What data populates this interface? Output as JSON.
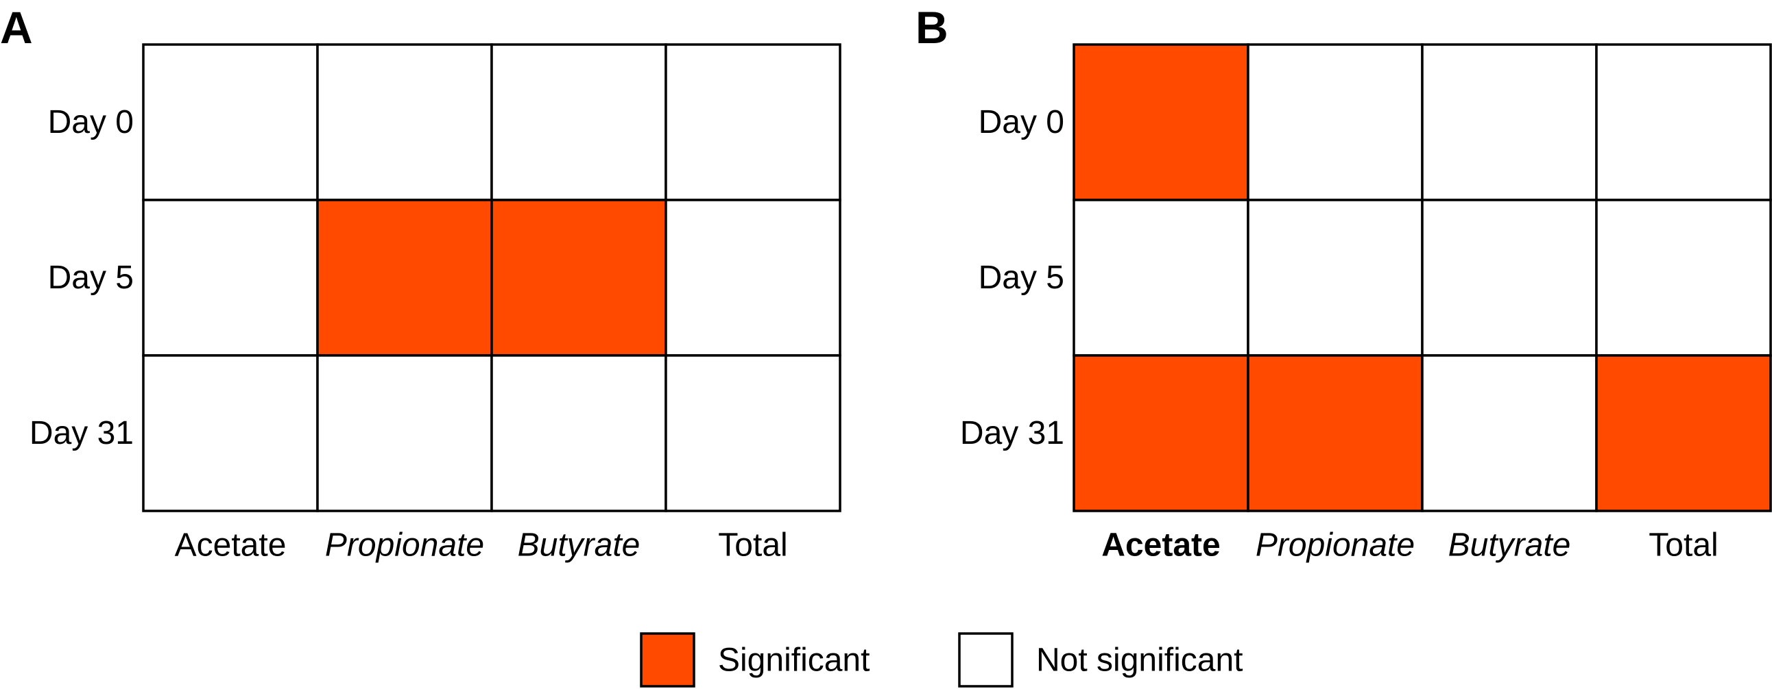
{
  "legend": {
    "items": [
      {
        "label": "Significant",
        "color": "#ff4a00"
      },
      {
        "label": "Not significant",
        "color": "#ffffff"
      }
    ]
  },
  "chart_data": [
    {
      "type": "heatmap",
      "panel": "A",
      "rows": [
        "Day 0",
        "Day 5",
        "Day 31"
      ],
      "columns": [
        {
          "label": "Acetate",
          "style": "normal"
        },
        {
          "label": "Propionate",
          "style": "italic"
        },
        {
          "label": "Butyrate",
          "style": "italic"
        },
        {
          "label": "Total",
          "style": "normal"
        }
      ],
      "values": [
        [
          0,
          0,
          0,
          0
        ],
        [
          0,
          1,
          1,
          0
        ],
        [
          0,
          0,
          0,
          0
        ]
      ]
    },
    {
      "type": "heatmap",
      "panel": "B",
      "rows": [
        "Day 0",
        "Day 5",
        "Day 31"
      ],
      "columns": [
        {
          "label": "Acetate",
          "style": "bold"
        },
        {
          "label": "Propionate",
          "style": "italic"
        },
        {
          "label": "Butyrate",
          "style": "italic"
        },
        {
          "label": "Total",
          "style": "normal"
        }
      ],
      "values": [
        [
          1,
          0,
          0,
          0
        ],
        [
          0,
          0,
          0,
          0
        ],
        [
          1,
          1,
          0,
          1
        ]
      ]
    }
  ]
}
